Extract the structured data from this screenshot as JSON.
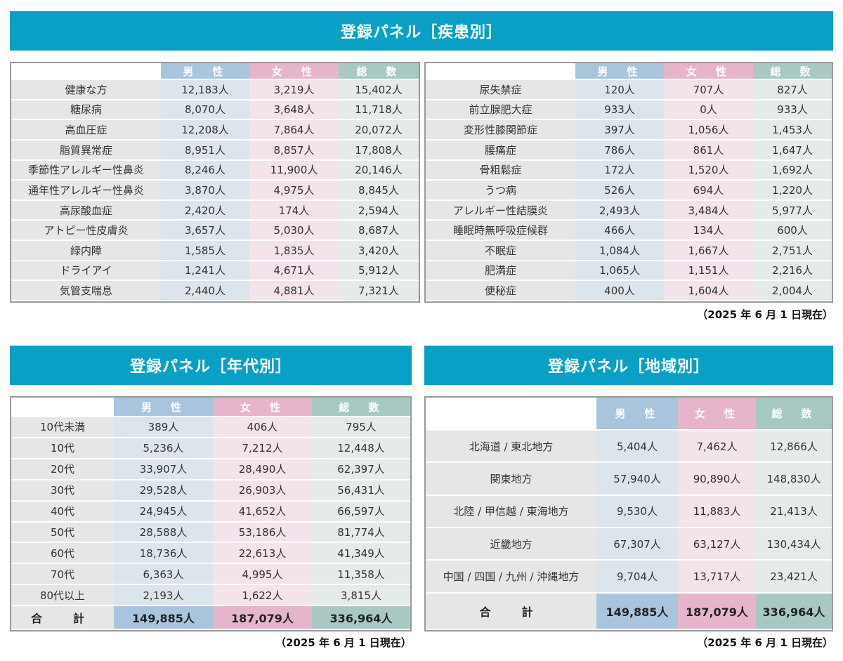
{
  "disease": {
    "title": "登録パネル［疾患別］",
    "headers": {
      "male": "男　性",
      "female": "女　性",
      "total": "総　数"
    },
    "left_rows": [
      {
        "label": "健康な方",
        "male": "12,183人",
        "female": "3,219人",
        "total": "15,402人"
      },
      {
        "label": "糖尿病",
        "male": "8,070人",
        "female": "3,648人",
        "total": "11,718人"
      },
      {
        "label": "高血圧症",
        "male": "12,208人",
        "female": "7,864人",
        "total": "20,072人"
      },
      {
        "label": "脂質異常症",
        "male": "8,951人",
        "female": "8,857人",
        "total": "17,808人"
      },
      {
        "label": "季節性アレルギー性鼻炎",
        "male": "8,246人",
        "female": "11,900人",
        "total": "20,146人"
      },
      {
        "label": "通年性アレルギー性鼻炎",
        "male": "3,870人",
        "female": "4,975人",
        "total": "8,845人"
      },
      {
        "label": "高尿酸血症",
        "male": "2,420人",
        "female": "174人",
        "total": "2,594人"
      },
      {
        "label": "アトピー性皮膚炎",
        "male": "3,657人",
        "female": "5,030人",
        "total": "8,687人"
      },
      {
        "label": "緑内障",
        "male": "1,585人",
        "female": "1,835人",
        "total": "3,420人"
      },
      {
        "label": "ドライアイ",
        "male": "1,241人",
        "female": "4,671人",
        "total": "5,912人"
      },
      {
        "label": "気管支喘息",
        "male": "2,440人",
        "female": "4,881人",
        "total": "7,321人"
      }
    ],
    "right_rows": [
      {
        "label": "尿失禁症",
        "male": "120人",
        "female": "707人",
        "total": "827人"
      },
      {
        "label": "前立腺肥大症",
        "male": "933人",
        "female": "0人",
        "total": "933人"
      },
      {
        "label": "変形性膝関節症",
        "male": "397人",
        "female": "1,056人",
        "total": "1,453人"
      },
      {
        "label": "腰痛症",
        "male": "786人",
        "female": "861人",
        "total": "1,647人"
      },
      {
        "label": "骨粗鬆症",
        "male": "172人",
        "female": "1,520人",
        "total": "1,692人"
      },
      {
        "label": "うつ病",
        "male": "526人",
        "female": "694人",
        "total": "1,220人"
      },
      {
        "label": "アレルギー性結膜炎",
        "male": "2,493人",
        "female": "3,484人",
        "total": "5,977人"
      },
      {
        "label": "睡眠時無呼吸症候群",
        "male": "466人",
        "female": "134人",
        "total": "600人"
      },
      {
        "label": "不眠症",
        "male": "1,084人",
        "female": "1,667人",
        "total": "2,751人"
      },
      {
        "label": "肥満症",
        "male": "1,065人",
        "female": "1,151人",
        "total": "2,216人"
      },
      {
        "label": "便秘症",
        "male": "400人",
        "female": "1,604人",
        "total": "2,004人"
      }
    ],
    "note": "（2025 年 6 月 1 日現在）"
  },
  "age": {
    "title": "登録パネル［年代別］",
    "headers": {
      "male": "男　性",
      "female": "女　性",
      "total": "総　数"
    },
    "rows": [
      {
        "label": "10代未満",
        "male": "389人",
        "female": "406人",
        "total": "795人"
      },
      {
        "label": "10代",
        "male": "5,236人",
        "female": "7,212人",
        "total": "12,448人"
      },
      {
        "label": "20代",
        "male": "33,907人",
        "female": "28,490人",
        "total": "62,397人"
      },
      {
        "label": "30代",
        "male": "29,528人",
        "female": "26,903人",
        "total": "56,431人"
      },
      {
        "label": "40代",
        "male": "24,945人",
        "female": "41,652人",
        "total": "66,597人"
      },
      {
        "label": "50代",
        "male": "28,588人",
        "female": "53,186人",
        "total": "81,774人"
      },
      {
        "label": "60代",
        "male": "18,736人",
        "female": "22,613人",
        "total": "41,349人"
      },
      {
        "label": "70代",
        "male": "6,363人",
        "female": "4,995人",
        "total": "11,358人"
      },
      {
        "label": "80代以上",
        "male": "2,193人",
        "female": "1,622人",
        "total": "3,815人"
      }
    ],
    "sum": {
      "label": "合　計",
      "male": "149,885人",
      "female": "187,079人",
      "total": "336,964人"
    },
    "note": "（2025 年 6 月 1 日現在）"
  },
  "region": {
    "title": "登録パネル［地域別］",
    "headers": {
      "male": "男　性",
      "female": "女　性",
      "total": "総　数"
    },
    "rows": [
      {
        "label": "北海道 / 東北地方",
        "male": "5,404人",
        "female": "7,462人",
        "total": "12,866人"
      },
      {
        "label": "関東地方",
        "male": "57,940人",
        "female": "90,890人",
        "total": "148,830人"
      },
      {
        "label": "北陸 / 甲信越 / 東海地方",
        "male": "9,530人",
        "female": "11,883人",
        "total": "21,413人"
      },
      {
        "label": "近畿地方",
        "male": "67,307人",
        "female": "63,127人",
        "total": "130,434人"
      },
      {
        "label": "中国 / 四国 / 九州 / 沖縄地方",
        "male": "9,704人",
        "female": "13,717人",
        "total": "23,421人"
      }
    ],
    "sum": {
      "label": "合　計",
      "male": "149,885人",
      "female": "187,079人",
      "total": "336,964人"
    },
    "note": "（2025 年 6 月 1 日現在）"
  }
}
